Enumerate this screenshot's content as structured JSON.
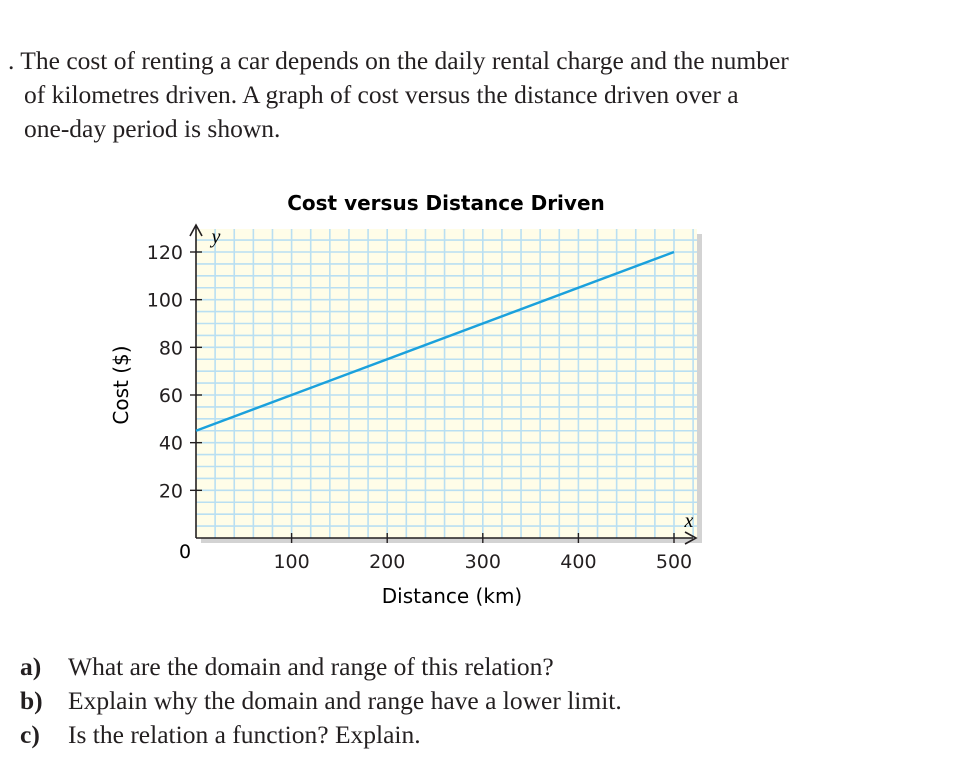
{
  "question": {
    "number_mark": ".",
    "lines": [
      "The cost of renting a car depends on the daily rental charge and the number",
      "of kilometres driven. A graph of cost versus the distance driven over a",
      "one-day period is shown."
    ]
  },
  "chart_data": {
    "type": "line",
    "title": "Cost versus Distance Driven",
    "xlabel": "Distance (km)",
    "ylabel": "Cost ($)",
    "x_axis_letter": "x",
    "y_axis_letter": "y",
    "xlim": [
      0,
      520
    ],
    "ylim": [
      0,
      125
    ],
    "x_ticks": [
      100,
      200,
      300,
      400,
      500
    ],
    "y_ticks": [
      20,
      40,
      60,
      80,
      100,
      120
    ],
    "origin_label": "0",
    "grid": true,
    "series": [
      {
        "name": "cost",
        "x": [
          0,
          500
        ],
        "y": [
          45,
          120
        ],
        "color": "#1ba1dc"
      }
    ],
    "colors": {
      "background": "#fffde8",
      "grid": "#b9dff2",
      "axis": "#231f20"
    }
  },
  "parts": [
    {
      "label": "a)",
      "text": "What are the domain and range of this relation?"
    },
    {
      "label": "b)",
      "text": "Explain why the domain and range have a lower limit."
    },
    {
      "label": "c)",
      "text": "Is the relation a function? Explain."
    }
  ]
}
